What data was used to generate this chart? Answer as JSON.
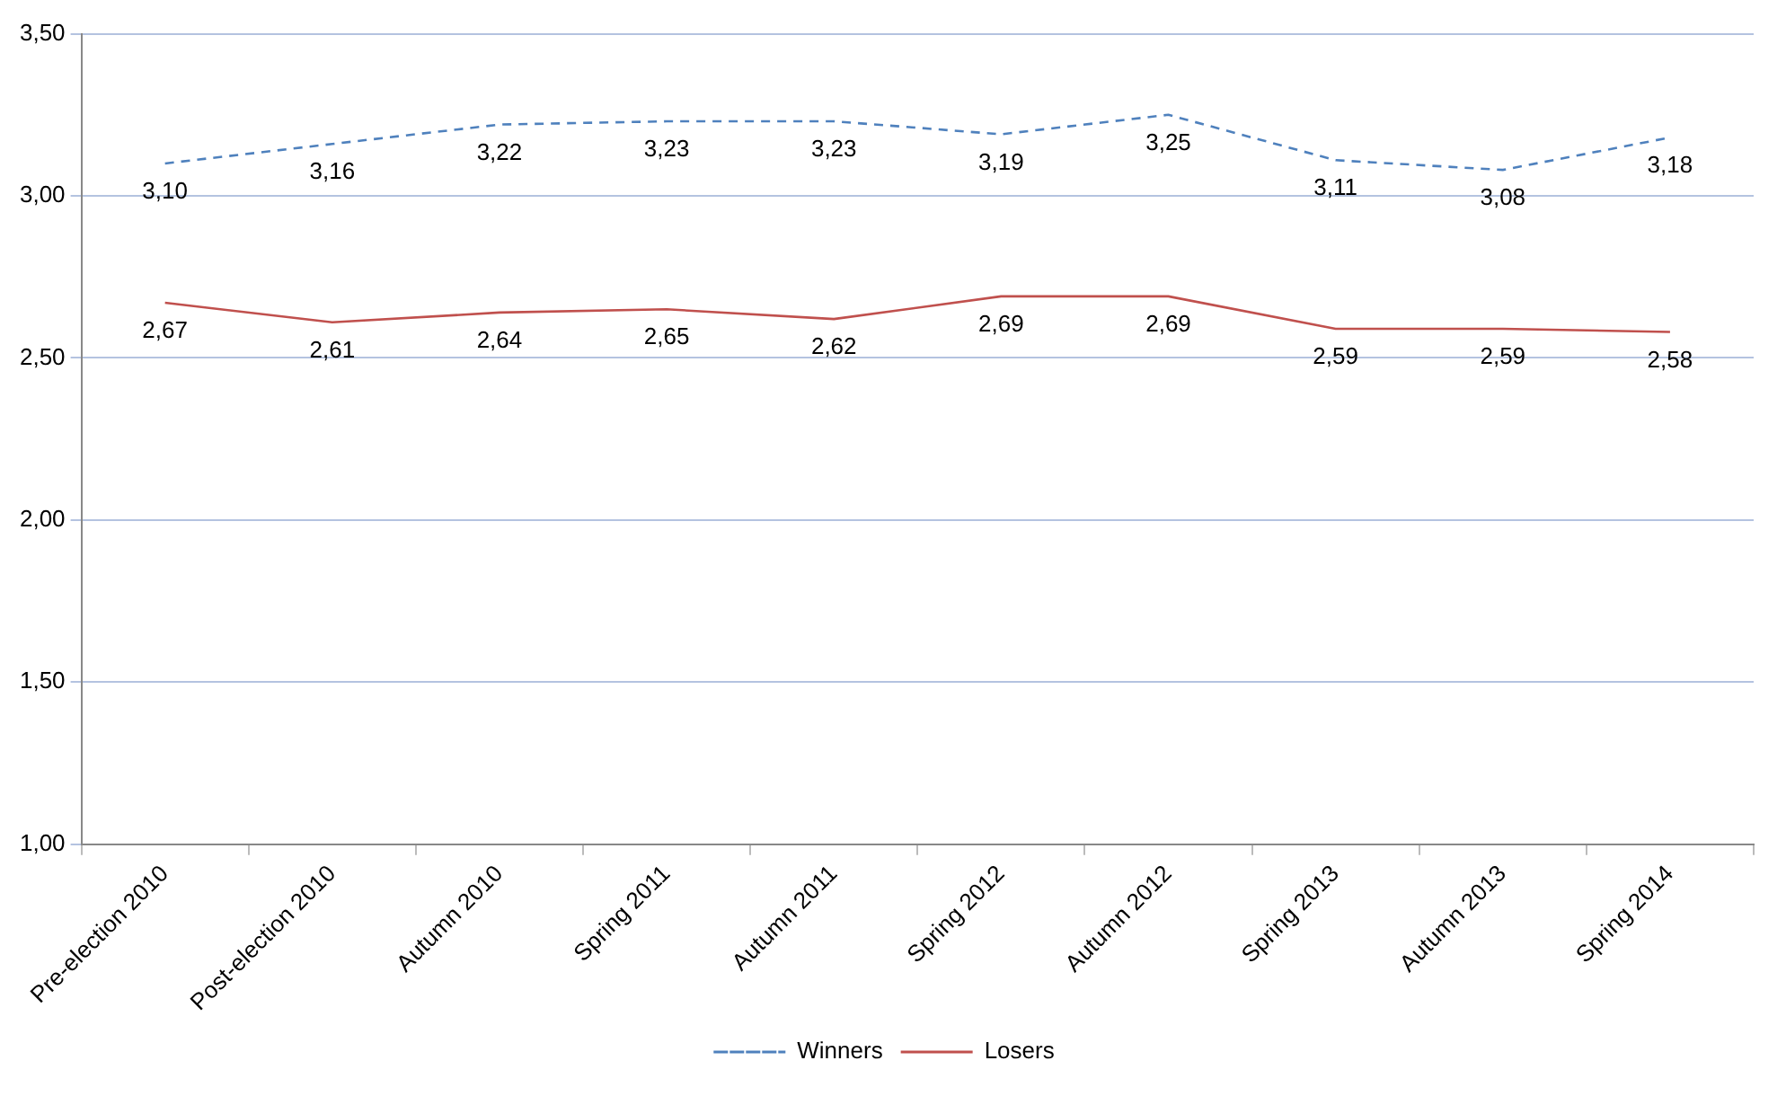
{
  "chart_data": {
    "type": "line",
    "categories": [
      "Pre-election 2010",
      "Post-election 2010",
      "Autumn 2010",
      "Spring 2011",
      "Autumn 2011",
      "Spring 2012",
      "Autumn 2012",
      "Spring 2013",
      "Autumn 2013",
      "Spring 2014"
    ],
    "series": [
      {
        "name": "Winners",
        "color": "#4f81bd",
        "line_style": "dashed",
        "values": [
          3.1,
          3.16,
          3.22,
          3.23,
          3.23,
          3.19,
          3.25,
          3.11,
          3.08,
          3.18
        ],
        "value_labels": [
          "3,10",
          "3,16",
          "3,22",
          "3,23",
          "3,23",
          "3,19",
          "3,25",
          "3,11",
          "3,08",
          "3,18"
        ]
      },
      {
        "name": "Losers",
        "color": "#c0504d",
        "line_style": "solid",
        "values": [
          2.67,
          2.61,
          2.64,
          2.65,
          2.62,
          2.69,
          2.69,
          2.59,
          2.59,
          2.58
        ],
        "value_labels": [
          "2,67",
          "2,61",
          "2,64",
          "2,65",
          "2,62",
          "2,69",
          "2,69",
          "2,59",
          "2,59",
          "2,58"
        ]
      }
    ],
    "ylim": [
      1,
      3.5
    ],
    "yticks": [
      {
        "value": 1,
        "label": "1,00"
      },
      {
        "value": 1.5,
        "label": "1,50"
      },
      {
        "value": 2,
        "label": "2,00"
      },
      {
        "value": 2.5,
        "label": "2,50"
      },
      {
        "value": 3,
        "label": "3,00"
      },
      {
        "value": 3.5,
        "label": "3,50"
      }
    ],
    "grid": "y",
    "legend": "bottom",
    "marker": "none"
  }
}
